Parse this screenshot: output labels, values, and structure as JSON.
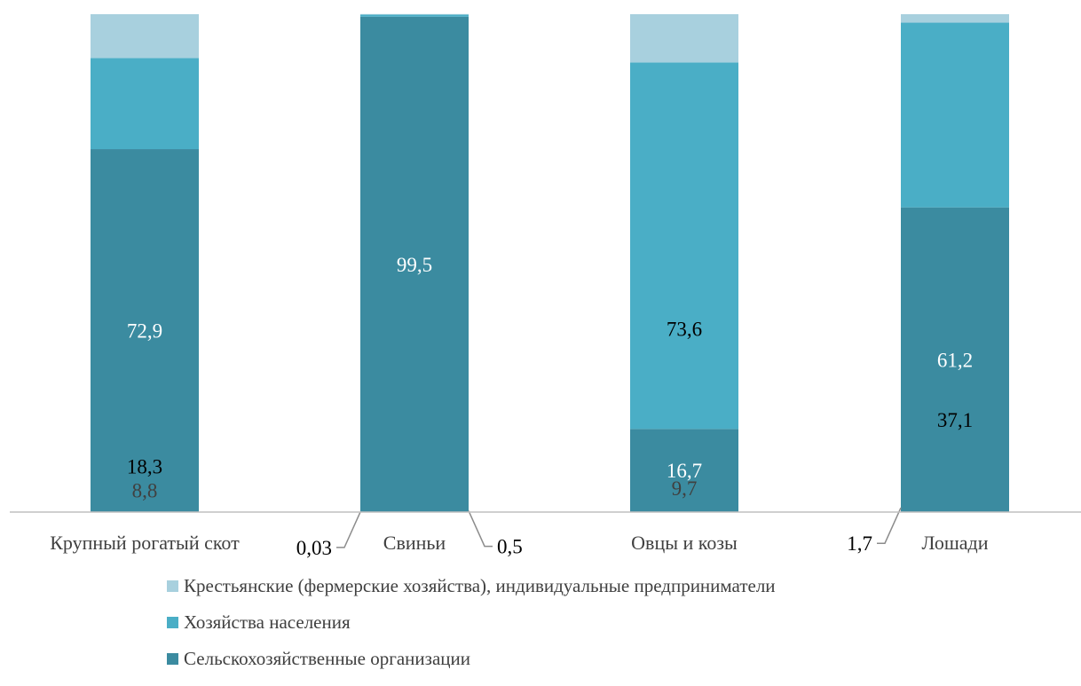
{
  "colors": {
    "org": "#3b8ba0",
    "households": "#4aaec6",
    "farmers": "#a8d0de",
    "axis": "#bfbfbf",
    "leader": "#8c8c8c",
    "text_dark": "#000000",
    "text_light": "#ffffff",
    "text_muted": "#404040"
  },
  "chart_data": {
    "type": "bar",
    "stacked": true,
    "percent_stacked": true,
    "categories": [
      "Крупный рогатый скот",
      "Свиньи",
      "Овцы и козы",
      "Лошади"
    ],
    "series": [
      {
        "name": "Сельскохозяйственные организации",
        "values": [
          72.9,
          99.5,
          16.7,
          61.2
        ],
        "labels": [
          "72,9",
          "99,5",
          "16,7",
          "61,2"
        ],
        "color": "#3b8ba0"
      },
      {
        "name": "Хозяйства населения",
        "values": [
          18.3,
          0.5,
          73.6,
          37.1
        ],
        "labels": [
          "18,3",
          "0,5",
          "73,6",
          "37,1"
        ],
        "color": "#4aaec6"
      },
      {
        "name": "Крестьянские (фермерские хозяйства), индивидуальные предприниматели",
        "values": [
          8.8,
          0.03,
          9.7,
          1.7
        ],
        "labels": [
          "8,8",
          "0,03",
          "9,7",
          "1,7"
        ],
        "color": "#a8d0de"
      }
    ],
    "ylim": [
      0,
      100
    ],
    "grid": false,
    "legend_position": "bottom",
    "legend_order": [
      2,
      1,
      0
    ]
  }
}
